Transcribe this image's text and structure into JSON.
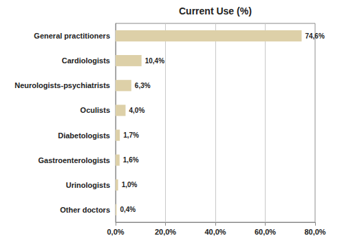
{
  "chart_data": {
    "type": "bar",
    "orientation": "horizontal",
    "title": "Current Use (%)",
    "categories": [
      "Other doctors",
      "Urinologists",
      "Gastroenterologists",
      "Diabetologists",
      "Oculists",
      "Neurologists-psychiatrists",
      "Cardiologists",
      "General practitioners"
    ],
    "values": [
      0.4,
      1.0,
      1.6,
      1.7,
      4.0,
      6.3,
      10.4,
      74.6
    ],
    "value_labels": [
      "0,4%",
      "1,0%",
      "1,6%",
      "1,7%",
      "4,0%",
      "6,3%",
      "10,4%",
      "74,6%"
    ],
    "color": "#ddd0a8",
    "xlim": [
      0,
      80
    ],
    "xticks": [
      {
        "value": 0,
        "label": "0,0%"
      },
      {
        "value": 20,
        "label": "20,0%"
      },
      {
        "value": 40,
        "label": "40,0%"
      },
      {
        "value": 60,
        "label": "60,0%"
      },
      {
        "value": 80,
        "label": "80,0%"
      }
    ],
    "grid": true,
    "data_labels": true
  }
}
